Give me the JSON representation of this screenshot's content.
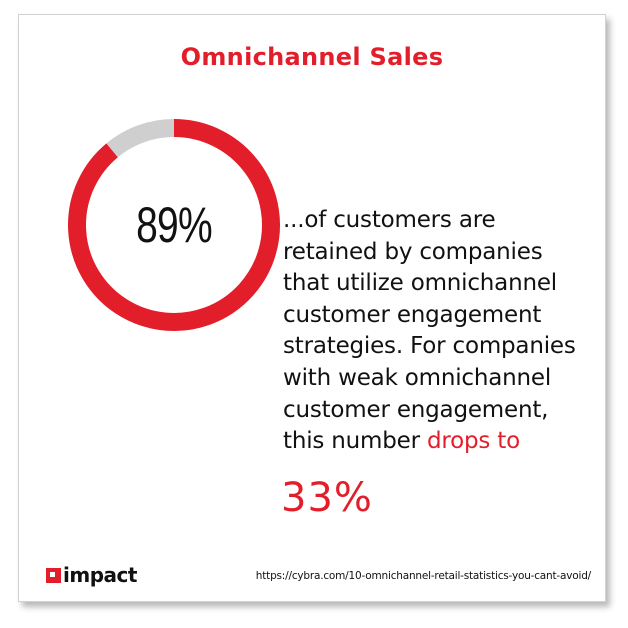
{
  "title": "Omnichannel Sales",
  "chart_data": {
    "type": "pie",
    "value": 89,
    "remainder": 11,
    "label": "89%",
    "colors": {
      "value": "#e21e2b",
      "remainder": "#cfcfcf"
    }
  },
  "body": {
    "lines": [
      "...of customers are",
      "retained by companies",
      "that utilize omnichannel",
      "customer engagement",
      "strategies. For companies",
      "with weak omnichannel",
      "customer engagement,"
    ],
    "last_line_prefix": "this number ",
    "last_line_highlight": "drops to",
    "big_value": "33%"
  },
  "brand": {
    "logo_text": "impact",
    "source_url": "https://cybra.com/10-omnichannel-retail-statistics-you-cant-avoid/"
  },
  "colors": {
    "accent": "#e21e2b",
    "text": "#111111",
    "track": "#cfcfcf"
  }
}
